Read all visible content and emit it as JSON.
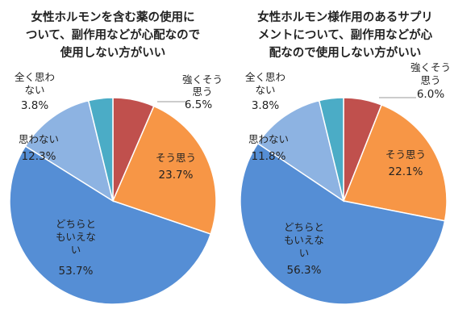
{
  "chart_data": [
    {
      "type": "pie",
      "title_lines": [
        "女性ホルモンを含む薬の使用に",
        "ついて、副作用などが心配なので",
        "使用しない方がいい"
      ],
      "slices": [
        {
          "label_lines": [
            "強くそう",
            "思う"
          ],
          "value": 6.5,
          "display": "6.5%",
          "color": "#c0504d"
        },
        {
          "label_lines": [
            "そう思う"
          ],
          "value": 23.7,
          "display": "23.7%",
          "color": "#f79646"
        },
        {
          "label_lines": [
            "どちらと",
            "もいえな",
            "い"
          ],
          "value": 53.7,
          "display": "53.7%",
          "color": "#558ed5"
        },
        {
          "label_lines": [
            "思わない"
          ],
          "value": 12.3,
          "display": "12.3%",
          "color": "#8db3e2"
        },
        {
          "label_lines": [
            "全く思わ",
            "ない"
          ],
          "value": 3.8,
          "display": "3.8%",
          "color": "#4bacc6"
        }
      ]
    },
    {
      "type": "pie",
      "title_lines": [
        "女性ホルモン様作用のあるサプリ",
        "メントについて、副作用などが心",
        "配なので使用しない方がいい"
      ],
      "slices": [
        {
          "label_lines": [
            "強くそう",
            "思う"
          ],
          "value": 6.0,
          "display": "6.0%",
          "color": "#c0504d"
        },
        {
          "label_lines": [
            "そう思う"
          ],
          "value": 22.1,
          "display": "22.1%",
          "color": "#f79646"
        },
        {
          "label_lines": [
            "どちらと",
            "もいえな",
            "い"
          ],
          "value": 56.3,
          "display": "56.3%",
          "color": "#558ed5"
        },
        {
          "label_lines": [
            "思わない"
          ],
          "value": 11.8,
          "display": "11.8%",
          "color": "#8db3e2"
        },
        {
          "label_lines": [
            "全く思わ",
            "ない"
          ],
          "value": 3.8,
          "display": "3.8%",
          "color": "#4bacc6"
        }
      ]
    }
  ]
}
